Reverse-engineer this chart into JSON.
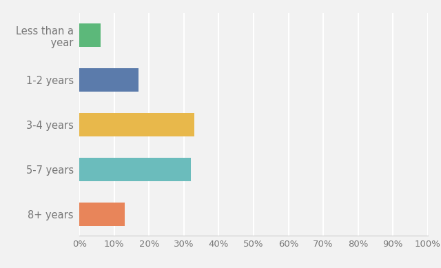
{
  "categories": [
    "Less than a\n year",
    "1-2 years",
    "3-4 years",
    "5-7 years",
    "8+ years"
  ],
  "values": [
    6,
    17,
    33,
    32,
    13
  ],
  "bar_colors": [
    "#5cb87a",
    "#5b7bab",
    "#e8b84b",
    "#6bbcbc",
    "#e8855a"
  ],
  "xlim": [
    0,
    100
  ],
  "xticks": [
    0,
    10,
    20,
    30,
    40,
    50,
    60,
    70,
    80,
    90,
    100
  ],
  "xtick_labels": [
    "0%",
    "10%",
    "20%",
    "30%",
    "40%",
    "50%",
    "60%",
    "70%",
    "80%",
    "90%",
    "100%"
  ],
  "background_color": "#f2f2f2",
  "bar_height": 0.52,
  "grid_color": "#ffffff",
  "label_fontsize": 10.5,
  "tick_fontsize": 9.5,
  "label_color": "#777777"
}
